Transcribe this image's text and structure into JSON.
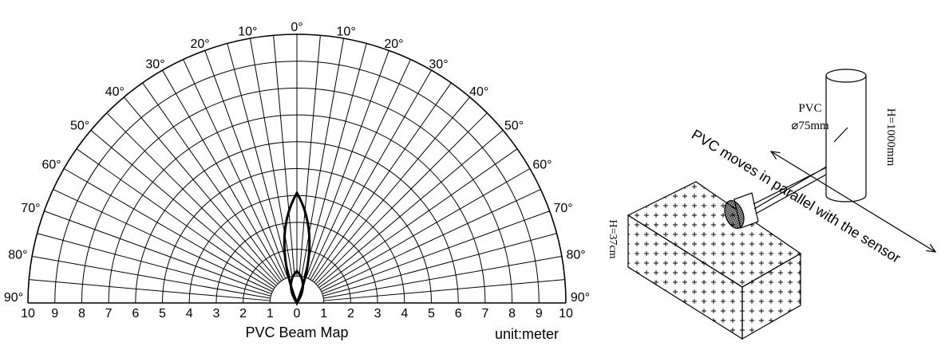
{
  "beam_map": {
    "angle_labels": [
      "0°",
      "10°",
      "20°",
      "30°",
      "40°",
      "50°",
      "60°",
      "70°",
      "80°",
      "90°"
    ],
    "distance_labels": [
      "0",
      "1",
      "2",
      "3",
      "4",
      "5",
      "6",
      "7",
      "8",
      "9",
      "10"
    ],
    "caption": "PVC  Beam Map",
    "unit": "unit:meter"
  },
  "setup": {
    "target": "PVC",
    "diameter": "⌀75mm",
    "height": "H=1000mm",
    "motion": "PVC moves in parallel with the sensor",
    "sensor_height": "H=37cm"
  }
}
